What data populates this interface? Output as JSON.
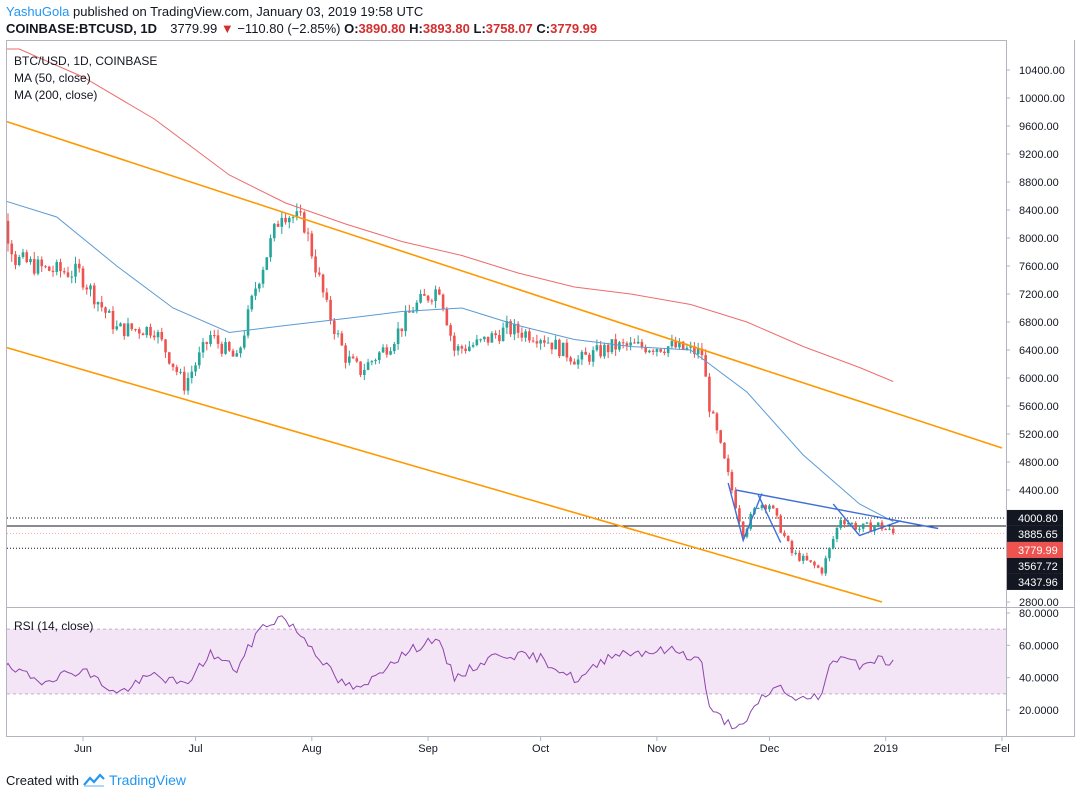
{
  "header": {
    "author": "YashuGola",
    "published_text": "published on TradingView.com, January 03, 2019 19:58 UTC",
    "symbol": "COINBASE:BTCUSD, 1D",
    "last": "3779.99",
    "arrow": "▼",
    "change": "−110.80 (−2.85%)",
    "o_label": "O:",
    "o_value": "3890.80",
    "h_label": "H:",
    "h_value": "3893.80",
    "l_label": "L:",
    "l_value": "3758.07",
    "c_label": "C:",
    "c_value": "3779.99"
  },
  "legend": {
    "title": "BTC/USD, 1D, COINBASE",
    "ma50": "MA (50, close)",
    "ma200": "MA (200, close)",
    "rsi": "RSI (14, close)"
  },
  "footer": {
    "created_with": "Created with",
    "brand": "TradingView"
  },
  "colors": {
    "up": "#26a69a",
    "down": "#ef5350",
    "ma50": "#5b9bd5",
    "ma200": "#ef6c6c",
    "channel": "#ff9800",
    "pattern": "#3d6fd9",
    "rsi_line": "#8e44ad",
    "rsi_band": "#f3e5f5",
    "accent": "#2196f3"
  },
  "chart_data": [
    {
      "type": "candlestick",
      "title": "BTC/USD, 1D, COINBASE",
      "x_tick_labels": [
        "Jun",
        "Jul",
        "Aug",
        "Sep",
        "Oct",
        "Nov",
        "Dec",
        "2019",
        "Fel"
      ],
      "x_ticks": [
        "2018-06-01",
        "2018-07-01",
        "2018-08-01",
        "2018-09-01",
        "2018-10-01",
        "2018-11-01",
        "2018-12-01",
        "2019-01-01",
        "2019-02-01"
      ],
      "y_tick_labels": [
        "2800.00",
        "3200.00",
        "3600.00",
        "4000.00",
        "4400.00",
        "4800.00",
        "5200.00",
        "5600.00",
        "6000.00",
        "6400.00",
        "6800.00",
        "7200.00",
        "7600.00",
        "8000.00",
        "8400.00",
        "8800.00",
        "9200.00",
        "9600.00",
        "10000.00",
        "10400.00"
      ],
      "ylim": [
        2800,
        10800
      ],
      "price_key_points": [
        {
          "date": "2018-05-05",
          "close": 8700
        },
        {
          "date": "2018-05-10",
          "close": 8400
        },
        {
          "date": "2018-05-14",
          "close": 7700
        },
        {
          "date": "2018-05-22",
          "close": 7550
        },
        {
          "date": "2018-05-31",
          "close": 7500
        },
        {
          "date": "2018-06-10",
          "close": 6700
        },
        {
          "date": "2018-06-20",
          "close": 6700
        },
        {
          "date": "2018-06-28",
          "close": 5900
        },
        {
          "date": "2018-07-05",
          "close": 6600
        },
        {
          "date": "2018-07-12",
          "close": 6250
        },
        {
          "date": "2018-07-17",
          "close": 7300
        },
        {
          "date": "2018-07-24",
          "close": 8400
        },
        {
          "date": "2018-07-30",
          "close": 8200
        },
        {
          "date": "2018-08-05",
          "close": 7000
        },
        {
          "date": "2018-08-10",
          "close": 6300
        },
        {
          "date": "2018-08-14",
          "close": 6100
        },
        {
          "date": "2018-08-22",
          "close": 6500
        },
        {
          "date": "2018-08-28",
          "close": 7000
        },
        {
          "date": "2018-09-04",
          "close": 7300
        },
        {
          "date": "2018-09-08",
          "close": 6400
        },
        {
          "date": "2018-09-15",
          "close": 6500
        },
        {
          "date": "2018-09-22",
          "close": 6700
        },
        {
          "date": "2018-10-01",
          "close": 6600
        },
        {
          "date": "2018-10-11",
          "close": 6250
        },
        {
          "date": "2018-10-20",
          "close": 6450
        },
        {
          "date": "2018-11-05",
          "close": 6450
        },
        {
          "date": "2018-11-13",
          "close": 6350
        },
        {
          "date": "2018-11-15",
          "close": 5600
        },
        {
          "date": "2018-11-19",
          "close": 4800
        },
        {
          "date": "2018-11-20",
          "close": 4600
        },
        {
          "date": "2018-11-24",
          "close": 3800
        },
        {
          "date": "2018-11-28",
          "close": 4200
        },
        {
          "date": "2018-12-01",
          "close": 4200
        },
        {
          "date": "2018-12-07",
          "close": 3500
        },
        {
          "date": "2018-12-15",
          "close": 3250
        },
        {
          "date": "2018-12-20",
          "close": 4000
        },
        {
          "date": "2018-12-25",
          "close": 3850
        },
        {
          "date": "2018-12-30",
          "close": 3900
        },
        {
          "date": "2019-01-03",
          "close": 3780
        }
      ],
      "series": [
        {
          "name": "MA (50, close)",
          "points": [
            {
              "date": "2018-05-01",
              "value": 8500
            },
            {
              "date": "2018-05-10",
              "value": 8550
            },
            {
              "date": "2018-05-25",
              "value": 8300
            },
            {
              "date": "2018-06-10",
              "value": 7600
            },
            {
              "date": "2018-06-25",
              "value": 7000
            },
            {
              "date": "2018-07-10",
              "value": 6650
            },
            {
              "date": "2018-07-25",
              "value": 6750
            },
            {
              "date": "2018-08-10",
              "value": 6850
            },
            {
              "date": "2018-08-25",
              "value": 6950
            },
            {
              "date": "2018-09-10",
              "value": 7000
            },
            {
              "date": "2018-09-25",
              "value": 6750
            },
            {
              "date": "2018-10-10",
              "value": 6550
            },
            {
              "date": "2018-10-25",
              "value": 6450
            },
            {
              "date": "2018-11-10",
              "value": 6400
            },
            {
              "date": "2018-11-25",
              "value": 5800
            },
            {
              "date": "2018-12-10",
              "value": 4900
            },
            {
              "date": "2018-12-25",
              "value": 4200
            },
            {
              "date": "2019-01-03",
              "value": 3950
            }
          ]
        },
        {
          "name": "MA (200, close)",
          "points": [
            {
              "date": "2018-05-01",
              "value": 10700
            },
            {
              "date": "2018-05-15",
              "value": 10700
            },
            {
              "date": "2018-06-01",
              "value": 10300
            },
            {
              "date": "2018-06-20",
              "value": 9700
            },
            {
              "date": "2018-07-10",
              "value": 8900
            },
            {
              "date": "2018-07-25",
              "value": 8500
            },
            {
              "date": "2018-08-10",
              "value": 8200
            },
            {
              "date": "2018-08-25",
              "value": 7950
            },
            {
              "date": "2018-09-10",
              "value": 7750
            },
            {
              "date": "2018-09-25",
              "value": 7500
            },
            {
              "date": "2018-10-10",
              "value": 7300
            },
            {
              "date": "2018-10-25",
              "value": 7200
            },
            {
              "date": "2018-11-10",
              "value": 7050
            },
            {
              "date": "2018-11-25",
              "value": 6800
            },
            {
              "date": "2018-12-10",
              "value": 6450
            },
            {
              "date": "2018-12-25",
              "value": 6150
            },
            {
              "date": "2019-01-03",
              "value": 5950
            }
          ]
        }
      ],
      "drawings": {
        "channel_upper": [
          {
            "date": "2018-05-01",
            "value": 9850
          },
          {
            "date": "2019-02-01",
            "value": 5000
          }
        ],
        "channel_lower": [
          {
            "date": "2018-05-01",
            "value": 6600
          },
          {
            "date": "2018-12-31",
            "value": 2800
          }
        ],
        "pattern_lines": [
          [
            {
              "date": "2018-11-20",
              "value": 4500
            },
            {
              "date": "2018-11-24",
              "value": 3680
            },
            {
              "date": "2018-11-29",
              "value": 4350
            }
          ],
          [
            {
              "date": "2018-11-28",
              "value": 4330
            },
            {
              "date": "2018-12-04",
              "value": 3650
            }
          ],
          [
            {
              "date": "2018-11-22",
              "value": 4400
            },
            {
              "date": "2019-01-15",
              "value": 3850
            }
          ],
          [
            {
              "date": "2018-12-18",
              "value": 4200
            },
            {
              "date": "2018-12-25",
              "value": 3750
            },
            {
              "date": "2019-01-05",
              "value": 3960
            }
          ]
        ],
        "horizontal_levels": [
          {
            "value": 4000.8,
            "style": "dotted",
            "label": "4000.80",
            "label_color": "#131722"
          },
          {
            "value": 3885.65,
            "style": "solid",
            "label": "3885.65",
            "label_color": "#131722"
          },
          {
            "value": 3779.99,
            "style": "price",
            "label": "3779.99",
            "label_color": "#ef5350"
          },
          {
            "value": 3567.72,
            "style": "dotted",
            "label": "3567.72",
            "label_color": "#131722"
          },
          {
            "value": 3437.96,
            "style": "none",
            "label": "3437.96",
            "label_color": "#131722"
          }
        ]
      }
    },
    {
      "type": "line",
      "title": "RSI (14, close)",
      "y_tick_labels": [
        "20.0000",
        "40.0000",
        "60.0000",
        "80.0000"
      ],
      "ylim": [
        5,
        82
      ],
      "band": [
        30,
        70
      ],
      "series": [
        {
          "name": "RSI (14, close)",
          "points": [
            {
              "date": "2018-05-01",
              "value": 50
            },
            {
              "date": "2018-05-10",
              "value": 48
            },
            {
              "date": "2018-05-20",
              "value": 38
            },
            {
              "date": "2018-06-01",
              "value": 45
            },
            {
              "date": "2018-06-10",
              "value": 30
            },
            {
              "date": "2018-06-20",
              "value": 42
            },
            {
              "date": "2018-06-28",
              "value": 35
            },
            {
              "date": "2018-07-05",
              "value": 55
            },
            {
              "date": "2018-07-12",
              "value": 45
            },
            {
              "date": "2018-07-18",
              "value": 70
            },
            {
              "date": "2018-07-24",
              "value": 78
            },
            {
              "date": "2018-07-31",
              "value": 62
            },
            {
              "date": "2018-08-08",
              "value": 38
            },
            {
              "date": "2018-08-14",
              "value": 32
            },
            {
              "date": "2018-08-22",
              "value": 50
            },
            {
              "date": "2018-09-03",
              "value": 65
            },
            {
              "date": "2018-09-08",
              "value": 40
            },
            {
              "date": "2018-09-20",
              "value": 55
            },
            {
              "date": "2018-10-01",
              "value": 52
            },
            {
              "date": "2018-10-11",
              "value": 38
            },
            {
              "date": "2018-10-20",
              "value": 55
            },
            {
              "date": "2018-11-06",
              "value": 57
            },
            {
              "date": "2018-11-13",
              "value": 50
            },
            {
              "date": "2018-11-15",
              "value": 20
            },
            {
              "date": "2018-11-20",
              "value": 12
            },
            {
              "date": "2018-11-24",
              "value": 9
            },
            {
              "date": "2018-11-29",
              "value": 28
            },
            {
              "date": "2018-12-04",
              "value": 35
            },
            {
              "date": "2018-12-08",
              "value": 25
            },
            {
              "date": "2018-12-15",
              "value": 30
            },
            {
              "date": "2018-12-17",
              "value": 46
            },
            {
              "date": "2018-12-20",
              "value": 55
            },
            {
              "date": "2018-12-25",
              "value": 48
            },
            {
              "date": "2018-12-30",
              "value": 52
            },
            {
              "date": "2019-01-03",
              "value": 49
            }
          ]
        }
      ]
    }
  ]
}
